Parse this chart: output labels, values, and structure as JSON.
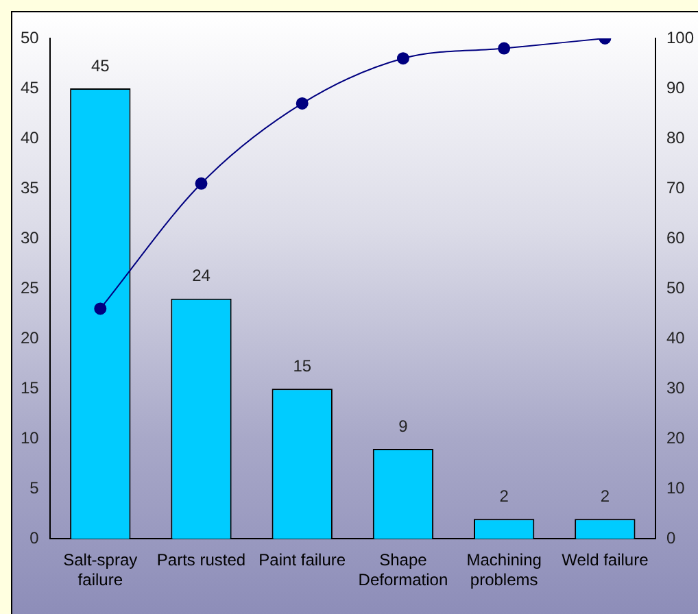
{
  "chart_data": {
    "type": "bar",
    "categories": [
      "Salt-spray failure",
      "Parts rusted",
      "Paint failure",
      "Shape Deformation",
      "Machining problems",
      "Weld failure"
    ],
    "series": [
      {
        "color": "#00ccff",
        "values": [
          45,
          24,
          15,
          9,
          2,
          2
        ],
        "value_labels": [
          "45",
          "24",
          "15",
          "9",
          "2",
          "2"
        ]
      },
      {
        "type": "line",
        "axis": "y2",
        "color": "#000080",
        "values": [
          46,
          71,
          87,
          96,
          98,
          100
        ]
      }
    ],
    "marker": "circle",
    "line_style": "solid",
    "ylim": [
      0,
      50
    ],
    "yticks": [
      0,
      5,
      10,
      15,
      20,
      25,
      30,
      35,
      40,
      45,
      50
    ],
    "y2lim": [
      0,
      100
    ],
    "y2ticks": [
      0,
      10,
      20,
      30,
      40,
      50,
      60,
      70,
      80,
      90,
      100
    ]
  }
}
